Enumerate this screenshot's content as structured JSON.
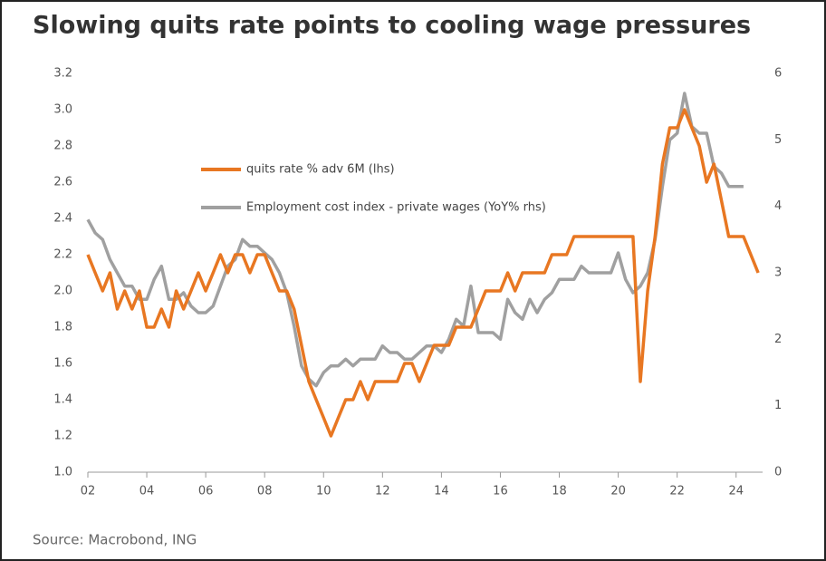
{
  "chart_data": {
    "type": "line",
    "title": "Slowing quits rate points to cooling wage pressures",
    "source": "Source: Macrobond, ING",
    "x": [
      2002,
      2002.25,
      2002.5,
      2002.75,
      2003,
      2003.25,
      2003.5,
      2003.75,
      2004,
      2004.25,
      2004.5,
      2004.75,
      2005,
      2005.25,
      2005.5,
      2005.75,
      2006,
      2006.25,
      2006.5,
      2006.75,
      2007,
      2007.25,
      2007.5,
      2007.75,
      2008,
      2008.25,
      2008.5,
      2008.75,
      2009,
      2009.25,
      2009.5,
      2009.75,
      2010,
      2010.25,
      2010.5,
      2010.75,
      2011,
      2011.25,
      2011.5,
      2011.75,
      2012,
      2012.25,
      2012.5,
      2012.75,
      2013,
      2013.25,
      2013.5,
      2013.75,
      2014,
      2014.25,
      2014.5,
      2014.75,
      2015,
      2015.25,
      2015.5,
      2015.75,
      2016,
      2016.25,
      2016.5,
      2016.75,
      2017,
      2017.25,
      2017.5,
      2017.75,
      2018,
      2018.25,
      2018.5,
      2018.75,
      2019,
      2019.25,
      2019.5,
      2019.75,
      2020,
      2020.25,
      2020.5,
      2020.75,
      2021,
      2021.25,
      2021.5,
      2021.75,
      2022,
      2022.25,
      2022.5,
      2022.75,
      2023,
      2023.25,
      2023.5,
      2023.75,
      2024,
      2024.25,
      2024.5,
      2024.75
    ],
    "series": [
      {
        "name": "quits rate % adv 6M (lhs)",
        "color": "#e87722",
        "axis": "y",
        "values": [
          2.2,
          2.1,
          2.0,
          2.1,
          1.9,
          2.0,
          1.9,
          2.0,
          1.8,
          1.8,
          1.9,
          1.8,
          2.0,
          1.9,
          2.0,
          2.1,
          2.0,
          2.1,
          2.2,
          2.1,
          2.2,
          2.2,
          2.1,
          2.2,
          2.2,
          2.1,
          2.0,
          2.0,
          1.9,
          1.7,
          1.5,
          1.4,
          1.3,
          1.2,
          1.3,
          1.4,
          1.4,
          1.5,
          1.4,
          1.5,
          1.5,
          1.5,
          1.5,
          1.6,
          1.6,
          1.5,
          1.6,
          1.7,
          1.7,
          1.7,
          1.8,
          1.8,
          1.8,
          1.9,
          2.0,
          2.0,
          2.0,
          2.1,
          2.0,
          2.1,
          2.1,
          2.1,
          2.1,
          2.2,
          2.2,
          2.2,
          2.3,
          2.3,
          2.3,
          2.3,
          2.3,
          2.3,
          2.3,
          2.3,
          2.3,
          1.5,
          2.0,
          2.3,
          2.7,
          2.9,
          2.9,
          3.0,
          2.9,
          2.8,
          2.6,
          2.7,
          2.5,
          2.3,
          2.3,
          2.3,
          2.2,
          2.1
        ]
      },
      {
        "name": "Employment cost index - private wages (YoY% rhs)",
        "color": "#a0a0a0",
        "axis": "y2",
        "values": [
          3.8,
          3.6,
          3.5,
          3.2,
          3.0,
          2.8,
          2.8,
          2.6,
          2.6,
          2.9,
          3.1,
          2.6,
          2.6,
          2.7,
          2.5,
          2.4,
          2.4,
          2.5,
          2.8,
          3.1,
          3.2,
          3.5,
          3.4,
          3.4,
          3.3,
          3.2,
          3.0,
          2.7,
          2.2,
          1.6,
          1.4,
          1.3,
          1.5,
          1.6,
          1.6,
          1.7,
          1.6,
          1.7,
          1.7,
          1.7,
          1.9,
          1.8,
          1.8,
          1.7,
          1.7,
          1.8,
          1.9,
          1.9,
          1.8,
          2.0,
          2.3,
          2.2,
          2.8,
          2.1,
          2.1,
          2.1,
          2.0,
          2.6,
          2.4,
          2.3,
          2.6,
          2.4,
          2.6,
          2.7,
          2.9,
          2.9,
          2.9,
          3.1,
          3.0,
          3.0,
          3.0,
          3.0,
          3.3,
          2.9,
          2.7,
          2.8,
          3.0,
          3.5,
          4.3,
          5.0,
          5.1,
          5.7,
          5.2,
          5.1,
          5.1,
          4.6,
          4.5,
          4.3,
          4.3,
          4.3,
          null,
          null
        ]
      }
    ],
    "xlim": [
      2002,
      2024.9
    ],
    "xticks": [
      {
        "value": 2002,
        "label": "02"
      },
      {
        "value": 2004,
        "label": "04"
      },
      {
        "value": 2006,
        "label": "06"
      },
      {
        "value": 2008,
        "label": "08"
      },
      {
        "value": 2010,
        "label": "10"
      },
      {
        "value": 2012,
        "label": "12"
      },
      {
        "value": 2014,
        "label": "14"
      },
      {
        "value": 2016,
        "label": "16"
      },
      {
        "value": 2018,
        "label": "18"
      },
      {
        "value": 2020,
        "label": "20"
      },
      {
        "value": 2022,
        "label": "22"
      },
      {
        "value": 2024,
        "label": "24"
      }
    ],
    "ylim": [
      1.0,
      3.2
    ],
    "yticks": [
      {
        "value": 1.0,
        "label": "1.0"
      },
      1.2,
      1.4,
      1.6,
      1.8,
      {
        "value": 2.0,
        "label": "2.0"
      },
      2.2,
      2.4,
      2.6,
      2.8,
      {
        "value": 3.0,
        "label": "3.0"
      },
      3.2
    ],
    "y2lim": [
      0,
      6
    ],
    "y2ticks": [
      0,
      1,
      2,
      3,
      4,
      5,
      6
    ]
  }
}
